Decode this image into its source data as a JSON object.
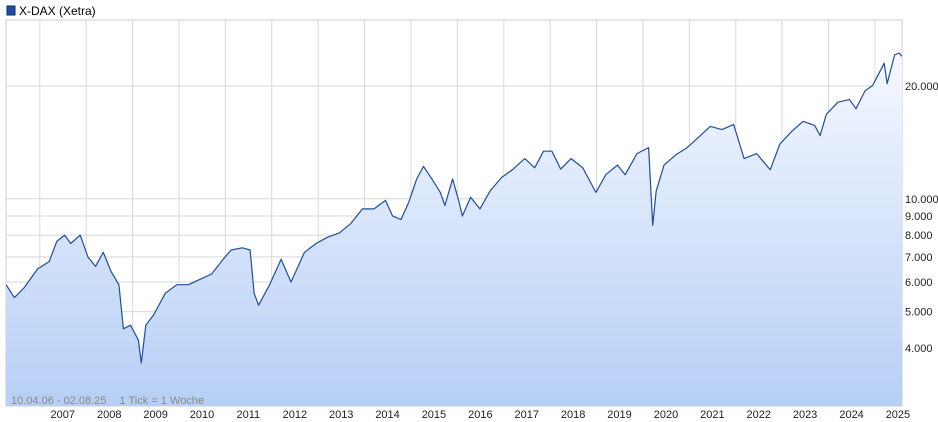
{
  "chart_data": {
    "type": "area",
    "series": [
      {
        "name": "X-DAX (Xetra)",
        "color": "#1f4e9c",
        "points": [
          [
            "2006-04-10",
            5900
          ],
          [
            "2006-06-15",
            5450
          ],
          [
            "2006-09-01",
            5800
          ],
          [
            "2006-12-15",
            6500
          ],
          [
            "2007-03-15",
            6800
          ],
          [
            "2007-05-15",
            7700
          ],
          [
            "2007-07-15",
            8000
          ],
          [
            "2007-09-01",
            7600
          ],
          [
            "2007-11-15",
            8000
          ],
          [
            "2008-01-15",
            7000
          ],
          [
            "2008-03-15",
            6600
          ],
          [
            "2008-05-15",
            7200
          ],
          [
            "2008-07-15",
            6400
          ],
          [
            "2008-09-15",
            5900
          ],
          [
            "2008-10-20",
            4500
          ],
          [
            "2008-12-15",
            4600
          ],
          [
            "2009-02-15",
            4200
          ],
          [
            "2009-03-10",
            3650
          ],
          [
            "2009-04-15",
            4600
          ],
          [
            "2009-06-15",
            4900
          ],
          [
            "2009-09-15",
            5600
          ],
          [
            "2009-12-15",
            5900
          ],
          [
            "2010-03-15",
            5900
          ],
          [
            "2010-06-15",
            6100
          ],
          [
            "2010-09-15",
            6300
          ],
          [
            "2010-12-15",
            6900
          ],
          [
            "2011-02-15",
            7300
          ],
          [
            "2011-05-15",
            7400
          ],
          [
            "2011-07-15",
            7300
          ],
          [
            "2011-08-15",
            5600
          ],
          [
            "2011-09-20",
            5200
          ],
          [
            "2011-12-15",
            5900
          ],
          [
            "2012-03-15",
            6900
          ],
          [
            "2012-06-01",
            6000
          ],
          [
            "2012-09-15",
            7200
          ],
          [
            "2012-12-15",
            7600
          ],
          [
            "2013-03-15",
            7900
          ],
          [
            "2013-06-15",
            8100
          ],
          [
            "2013-09-15",
            8600
          ],
          [
            "2013-12-15",
            9400
          ],
          [
            "2014-03-15",
            9400
          ],
          [
            "2014-06-15",
            9900
          ],
          [
            "2014-08-10",
            9000
          ],
          [
            "2014-10-15",
            8800
          ],
          [
            "2014-12-15",
            9800
          ],
          [
            "2015-02-15",
            11300
          ],
          [
            "2015-04-10",
            12200
          ],
          [
            "2015-06-15",
            11300
          ],
          [
            "2015-08-20",
            10400
          ],
          [
            "2015-09-25",
            9600
          ],
          [
            "2015-11-25",
            11300
          ],
          [
            "2016-01-15",
            9800
          ],
          [
            "2016-02-10",
            9000
          ],
          [
            "2016-04-15",
            10100
          ],
          [
            "2016-06-27",
            9400
          ],
          [
            "2016-09-15",
            10500
          ],
          [
            "2016-12-15",
            11400
          ],
          [
            "2017-03-15",
            12000
          ],
          [
            "2017-06-15",
            12800
          ],
          [
            "2017-09-01",
            12100
          ],
          [
            "2017-11-10",
            13400
          ],
          [
            "2018-01-15",
            13400
          ],
          [
            "2018-03-25",
            12000
          ],
          [
            "2018-06-15",
            12800
          ],
          [
            "2018-09-15",
            12100
          ],
          [
            "2018-12-27",
            10400
          ],
          [
            "2019-03-15",
            11600
          ],
          [
            "2019-06-15",
            12300
          ],
          [
            "2019-08-15",
            11600
          ],
          [
            "2019-11-15",
            13200
          ],
          [
            "2020-02-15",
            13700
          ],
          [
            "2020-03-18",
            8500
          ],
          [
            "2020-04-15",
            10500
          ],
          [
            "2020-06-15",
            12300
          ],
          [
            "2020-09-15",
            13100
          ],
          [
            "2020-12-15",
            13700
          ],
          [
            "2021-03-15",
            14600
          ],
          [
            "2021-06-15",
            15600
          ],
          [
            "2021-09-15",
            15300
          ],
          [
            "2021-12-15",
            15800
          ],
          [
            "2022-03-08",
            12800
          ],
          [
            "2022-06-15",
            13200
          ],
          [
            "2022-09-29",
            11950
          ],
          [
            "2022-12-15",
            14000
          ],
          [
            "2023-03-15",
            15100
          ],
          [
            "2023-06-15",
            16100
          ],
          [
            "2023-09-15",
            15700
          ],
          [
            "2023-10-27",
            14750
          ],
          [
            "2023-12-15",
            16800
          ],
          [
            "2024-03-15",
            18100
          ],
          [
            "2024-06-15",
            18400
          ],
          [
            "2024-08-05",
            17400
          ],
          [
            "2024-10-15",
            19400
          ],
          [
            "2024-12-15",
            20100
          ],
          [
            "2025-03-15",
            23000
          ],
          [
            "2025-04-07",
            20300
          ],
          [
            "2025-06-05",
            24200
          ],
          [
            "2025-07-10",
            24500
          ],
          [
            "2025-08-02",
            24000
          ]
        ]
      }
    ],
    "x_tick_labels": [
      "2007",
      "2008",
      "2009",
      "2010",
      "2011",
      "2012",
      "2013",
      "2014",
      "2015",
      "2016",
      "2017",
      "2018",
      "2019",
      "2020",
      "2021",
      "2022",
      "2023",
      "2024",
      "2025"
    ],
    "y_tick_values": [
      4000,
      5000,
      6000,
      7000,
      8000,
      9000,
      10000,
      20000
    ],
    "y_tick_labels": [
      "4.000",
      "5.000",
      "6.000",
      "7.000",
      "8.000",
      "9.000",
      "10.000",
      "20.000"
    ],
    "y_scale": "log",
    "xlim": [
      "2006-04-10",
      "2025-08-02"
    ],
    "ylim": [
      2800,
      30000
    ],
    "grid": true,
    "legend_position": "top-left",
    "date_range_text": "10.04.06 - 02.08.25",
    "tick_note": "1 Tick = 1 Woche",
    "fill_top_color": "#f5f8ff",
    "fill_bottom_color": "#b7cff5",
    "grid_color": "#d8d8d8"
  }
}
